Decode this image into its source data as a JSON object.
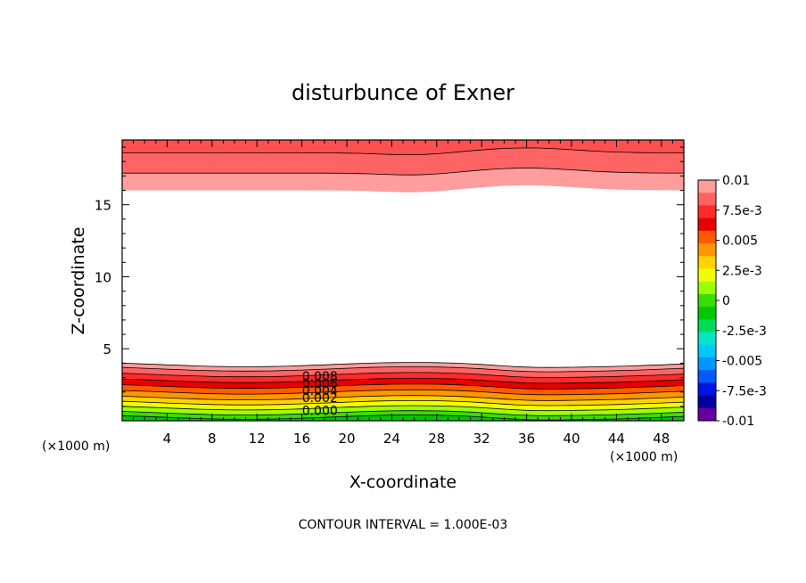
{
  "chart_data": {
    "type": "contour",
    "title": "disturbunce of Exner",
    "xlabel": "X-coordinate",
    "ylabel": "Z-coordinate",
    "x_unit": "(×1000 m)",
    "xlim": [
      0,
      50
    ],
    "ylim": [
      0,
      19.5
    ],
    "x_ticks": [
      4,
      8,
      12,
      16,
      20,
      24,
      28,
      32,
      36,
      40,
      44,
      48
    ],
    "y_ticks": [
      5,
      10,
      15
    ],
    "footer": "CONTOUR INTERVAL = 1.000E-03",
    "colorbar": {
      "labels": [
        "0.01",
        "7.5e-3",
        "0.005",
        "2.5e-3",
        "0",
        "-2.5e-3",
        "-0.005",
        "-7.5e-3",
        "-0.01"
      ],
      "colors": [
        "#ff9c9c",
        "#ff6464",
        "#ff2a2a",
        "#e60000",
        "#ff5a00",
        "#ff9600",
        "#ffd200",
        "#f0ff00",
        "#9cff00",
        "#3cdc00",
        "#00c800",
        "#00dc5a",
        "#00e6c8",
        "#00c8ff",
        "#0096ff",
        "#005aff",
        "#0014e6",
        "#0000a0",
        "#6400a0"
      ]
    },
    "contour_labels": [
      "0.008",
      "0.006",
      "0.004",
      "0.002",
      "0.000"
    ],
    "bottom_bands": [
      {
        "color": "#ff9c9c",
        "top": 3.9
      },
      {
        "color": "#ff6464",
        "top": 3.6
      },
      {
        "color": "#ff2a2a",
        "top": 3.2
      },
      {
        "color": "#e60000",
        "top": 2.8
      },
      {
        "color": "#ff5a00",
        "top": 2.4
      },
      {
        "color": "#ff9600",
        "top": 2.0
      },
      {
        "color": "#ffd200",
        "top": 1.6
      },
      {
        "color": "#f0ff00",
        "top": 1.25
      },
      {
        "color": "#9cff00",
        "top": 0.9
      },
      {
        "color": "#3cdc00",
        "top": 0.55
      },
      {
        "color": "#00c800",
        "top": 0.25
      }
    ],
    "top_bands": [
      {
        "color": "#ff9c9c",
        "bottom": 16.0
      },
      {
        "color": "#ff6464",
        "bottom": 17.2
      },
      {
        "color": "#ff5050",
        "bottom": 18.6
      }
    ]
  }
}
